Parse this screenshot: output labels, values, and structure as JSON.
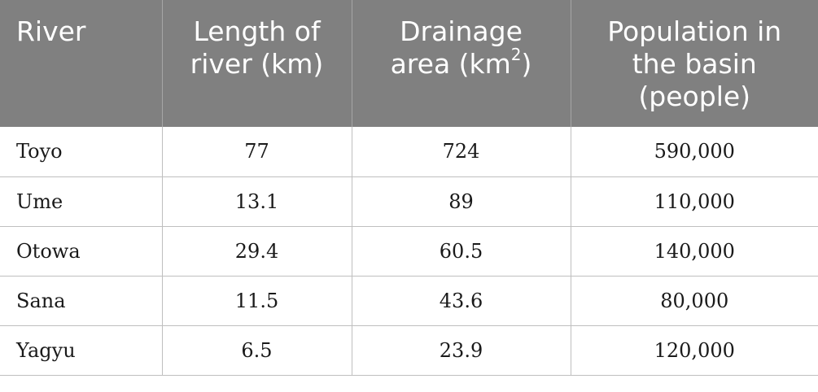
{
  "table": {
    "headers": {
      "river": "River",
      "length": {
        "line1": "Length of",
        "line2": "river (km)"
      },
      "drainage": {
        "line1": "Drainage",
        "line2_pre": "area (km",
        "line2_sup": "2",
        "line2_post": ")"
      },
      "population": {
        "line1": "Population in",
        "line2": "the basin",
        "line3": "(people)"
      }
    },
    "rows": [
      {
        "river": "Toyo",
        "length": "77",
        "drainage": "724",
        "population": "590,000"
      },
      {
        "river": "Ume",
        "length": "13.1",
        "drainage": "89",
        "population": "110,000"
      },
      {
        "river": "Otowa",
        "length": "29.4",
        "drainage": "60.5",
        "population": "140,000"
      },
      {
        "river": "Sana",
        "length": "11.5",
        "drainage": "43.6",
        "population": "80,000"
      },
      {
        "river": "Yagyu",
        "length": "6.5",
        "drainage": "23.9",
        "population": "120,000"
      }
    ]
  },
  "colors": {
    "header_background": "#808080",
    "header_text": "#ffffff",
    "grid_line": "#bfbfbf"
  }
}
